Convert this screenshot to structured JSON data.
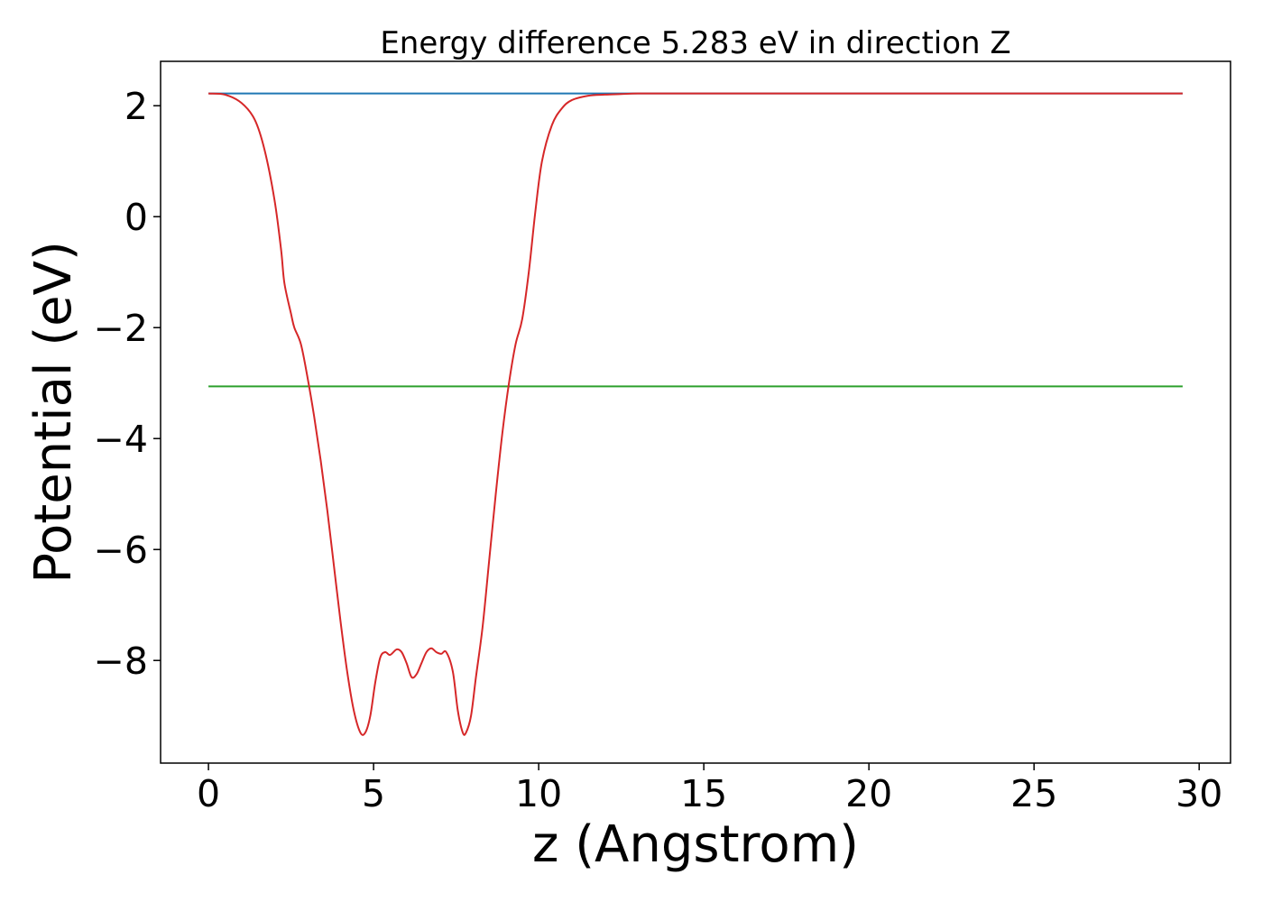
{
  "chart_data": {
    "type": "line",
    "title": "Energy difference 5.283 eV in direction Z",
    "xlabel": "z (Angstrom)",
    "ylabel": "Potential (eV)",
    "xlim": [
      -1.45,
      30.95
    ],
    "ylim": [
      -9.85,
      2.8
    ],
    "xticks": [
      0,
      5,
      10,
      15,
      20,
      25,
      30
    ],
    "xtick_labels": [
      "0",
      "5",
      "10",
      "15",
      "20",
      "25",
      "30"
    ],
    "yticks": [
      2,
      0,
      -2,
      -4,
      -6,
      -8
    ],
    "ytick_labels": [
      "2",
      "0",
      "−2",
      "−4",
      "−6",
      "−8"
    ],
    "grid": false,
    "series": [
      {
        "color": "#1f77b4",
        "x": [
          0,
          29.5
        ],
        "y": [
          2.22,
          2.22
        ]
      },
      {
        "color": "#2ca02c",
        "x": [
          0,
          29.5
        ],
        "y": [
          -3.06,
          -3.06
        ]
      },
      {
        "color": "#d62728",
        "x": [
          0,
          0.5,
          1.0,
          1.4,
          1.7,
          2.0,
          2.2,
          2.3,
          2.5,
          2.6,
          2.8,
          3.0,
          3.2,
          3.4,
          3.6,
          3.8,
          4.0,
          4.2,
          4.4,
          4.6,
          4.75,
          4.9,
          5.05,
          5.2,
          5.35,
          5.5,
          5.7,
          5.85,
          6.0,
          6.15,
          6.3,
          6.45,
          6.6,
          6.75,
          6.9,
          7.05,
          7.2,
          7.4,
          7.55,
          7.7,
          7.8,
          7.95,
          8.1,
          8.3,
          8.5,
          8.7,
          8.9,
          9.1,
          9.3,
          9.5,
          9.7,
          9.9,
          10.1,
          10.4,
          10.7,
          11.0,
          11.5,
          12.0,
          12.5,
          13.0,
          14.0,
          16.0,
          20.0,
          25.0,
          29.5
        ],
        "y": [
          2.22,
          2.2,
          2.05,
          1.75,
          1.2,
          0.3,
          -0.6,
          -1.2,
          -1.75,
          -2.0,
          -2.3,
          -2.9,
          -3.6,
          -4.4,
          -5.3,
          -6.3,
          -7.3,
          -8.2,
          -8.9,
          -9.3,
          -9.3,
          -9.0,
          -8.4,
          -7.95,
          -7.85,
          -7.9,
          -7.8,
          -7.85,
          -8.05,
          -8.3,
          -8.25,
          -8.05,
          -7.85,
          -7.78,
          -7.85,
          -7.88,
          -7.85,
          -8.2,
          -8.9,
          -9.3,
          -9.3,
          -9.0,
          -8.3,
          -7.4,
          -6.2,
          -5.0,
          -3.9,
          -3.0,
          -2.3,
          -1.85,
          -1.0,
          0.1,
          1.0,
          1.65,
          1.95,
          2.1,
          2.18,
          2.2,
          2.21,
          2.22,
          2.22,
          2.22,
          2.22,
          2.22,
          2.22
        ]
      }
    ]
  }
}
